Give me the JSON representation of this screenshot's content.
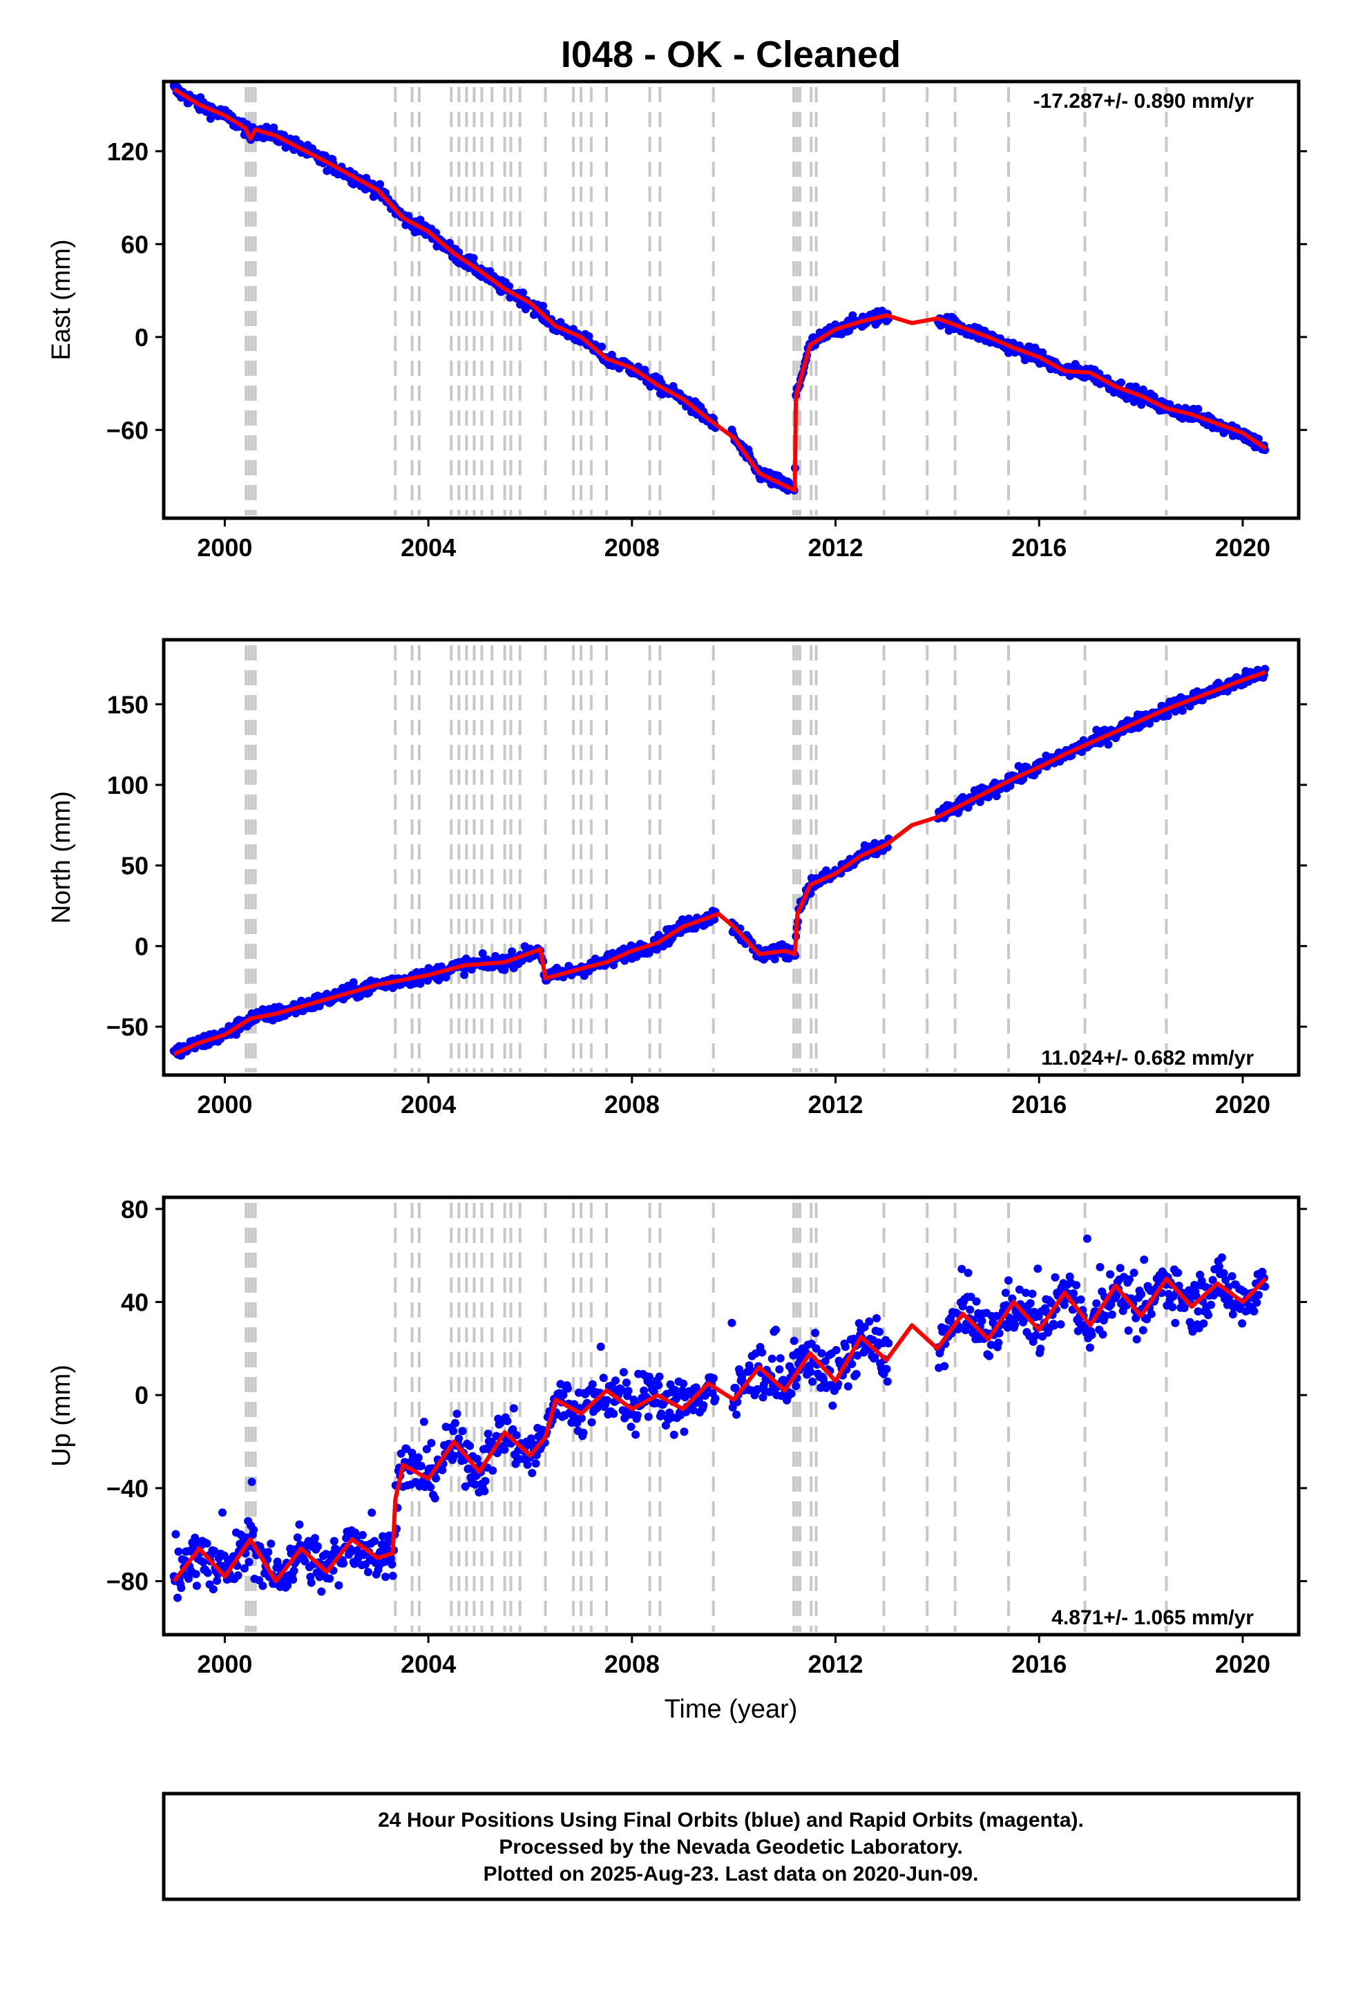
{
  "chart_data": {
    "type": "scatter",
    "title": "I048  - OK - Cleaned",
    "xlabel": "Time (year)",
    "xlim": [
      1998.8,
      2021.1
    ],
    "x_ticks": [
      "2000",
      "2004",
      "2008",
      "2012",
      "2016",
      "2020"
    ],
    "event_years": [
      2000.42,
      2000.48,
      2000.54,
      2000.6,
      2003.35,
      2003.68,
      2003.82,
      2004.45,
      2004.6,
      2004.75,
      2004.9,
      2005.05,
      2005.25,
      2005.5,
      2005.62,
      2005.8,
      2006.3,
      2006.85,
      2007.0,
      2007.2,
      2007.5,
      2008.35,
      2008.55,
      2009.6,
      2011.18,
      2011.24,
      2011.3,
      2011.52,
      2011.62,
      2012.95,
      2013.8,
      2014.35,
      2015.4,
      2016.9,
      2018.5
    ],
    "data_color": "#0000ff",
    "model_color": "#ff0000",
    "panels": [
      {
        "name": "East",
        "ylabel": "East (mm)",
        "ylim": [
          -117,
          165
        ],
        "y_ticks": [
          "120",
          "60",
          "0",
          "−60"
        ],
        "y_tick_values": [
          120,
          60,
          0,
          -60
        ],
        "rate_label": "-17.287+/- 0.890 mm/yr",
        "rate_position": "top-right",
        "model": {
          "x": [
            1999.0,
            1999.5,
            2000.0,
            2000.4,
            2000.5,
            2000.6,
            2001.0,
            2002.0,
            2003.0,
            2003.5,
            2004.0,
            2004.5,
            2005.0,
            2005.5,
            2006.0,
            2006.5,
            2007.0,
            2007.5,
            2008.0,
            2008.5,
            2009.0,
            2009.5,
            2010.0,
            2010.5,
            2011.0,
            2011.2,
            2011.22,
            2011.5,
            2012.0,
            2012.5,
            2013.0,
            2013.5,
            2014.0,
            2014.5,
            2015.0,
            2015.5,
            2016.0,
            2016.5,
            2017.0,
            2017.5,
            2018.0,
            2018.5,
            2019.0,
            2019.5,
            2020.0,
            2020.45
          ],
          "y": [
            160,
            150,
            143,
            135,
            128,
            134,
            130,
            113,
            95,
            77,
            68,
            54,
            43,
            31,
            22,
            7,
            0,
            -14,
            -20,
            -31,
            -40,
            -53,
            -65,
            -88,
            -96,
            -99,
            -38,
            -5,
            5,
            10,
            14,
            9,
            12,
            6,
            0,
            -7,
            -13,
            -22,
            -23,
            -32,
            -38,
            -46,
            -50,
            -56,
            -62,
            -72
          ]
        }
      },
      {
        "name": "North",
        "ylabel": "North (mm)",
        "ylim": [
          -80,
          190
        ],
        "y_ticks": [
          "150",
          "100",
          "50",
          "0",
          "−50"
        ],
        "y_tick_values": [
          150,
          100,
          50,
          0,
          -50
        ],
        "rate_label": "11.024+/- 0.682 mm/yr",
        "rate_position": "bottom-right",
        "model": {
          "x": [
            1999.0,
            1999.5,
            2000.0,
            2000.5,
            2001.0,
            2002.0,
            2003.0,
            2004.0,
            2004.7,
            2005.5,
            2006.2,
            2006.3,
            2007.0,
            2007.5,
            2008.0,
            2008.5,
            2009.0,
            2009.7,
            2010.0,
            2010.5,
            2011.0,
            2011.2,
            2011.25,
            2011.5,
            2012.0,
            2012.5,
            2013.0,
            2013.5,
            2014.0,
            2014.5,
            2015.0,
            2015.5,
            2016.0,
            2016.5,
            2017.0,
            2017.5,
            2018.0,
            2018.5,
            2019.0,
            2019.5,
            2020.0,
            2020.45
          ],
          "y": [
            -67,
            -60,
            -55,
            -45,
            -42,
            -33,
            -24,
            -18,
            -12,
            -10,
            -2,
            -20,
            -14,
            -10,
            -3,
            2,
            12,
            20,
            12,
            -5,
            -3,
            -5,
            20,
            38,
            45,
            56,
            63,
            75,
            80,
            88,
            96,
            104,
            111,
            119,
            126,
            133,
            140,
            147,
            153,
            159,
            165,
            170
          ]
        }
      },
      {
        "name": "Up",
        "ylabel": "Up (mm)",
        "ylim": [
          -103,
          85
        ],
        "y_ticks": [
          "80",
          "40",
          "0",
          "−40",
          "−80"
        ],
        "y_tick_values": [
          80,
          40,
          0,
          -40,
          -80
        ],
        "rate_label": "4.871+/- 1.065 mm/yr",
        "rate_position": "bottom-right",
        "model": {
          "x": [
            1999.0,
            1999.5,
            2000.0,
            2000.5,
            2001.0,
            2001.5,
            2002.0,
            2002.5,
            2003.0,
            2003.3,
            2003.35,
            2003.5,
            2004.0,
            2004.5,
            2005.0,
            2005.5,
            2006.0,
            2006.3,
            2006.5,
            2007.0,
            2007.5,
            2008.0,
            2008.5,
            2009.0,
            2009.5,
            2010.0,
            2010.5,
            2011.0,
            2011.5,
            2012.0,
            2012.5,
            2013.0,
            2013.5,
            2014.0,
            2014.5,
            2015.0,
            2015.5,
            2016.0,
            2016.5,
            2017.0,
            2017.5,
            2018.0,
            2018.5,
            2019.0,
            2019.5,
            2020.0,
            2020.45
          ],
          "y": [
            -80,
            -66,
            -78,
            -62,
            -80,
            -66,
            -76,
            -62,
            -70,
            -68,
            -45,
            -30,
            -36,
            -20,
            -33,
            -16,
            -26,
            -18,
            -2,
            -8,
            2,
            -6,
            0,
            -6,
            5,
            -2,
            12,
            2,
            18,
            6,
            25,
            15,
            30,
            20,
            35,
            24,
            40,
            28,
            44,
            30,
            47,
            34,
            50,
            38,
            48,
            40,
            50
          ]
        }
      }
    ]
  },
  "footer": {
    "line1": "24 Hour Positions Using Final Orbits (blue) and Rapid Orbits (magenta).",
    "line2": "Processed by the Nevada Geodetic Laboratory.",
    "line3": "Plotted on 2025-Aug-23. Last data on 2020-Jun-09."
  }
}
